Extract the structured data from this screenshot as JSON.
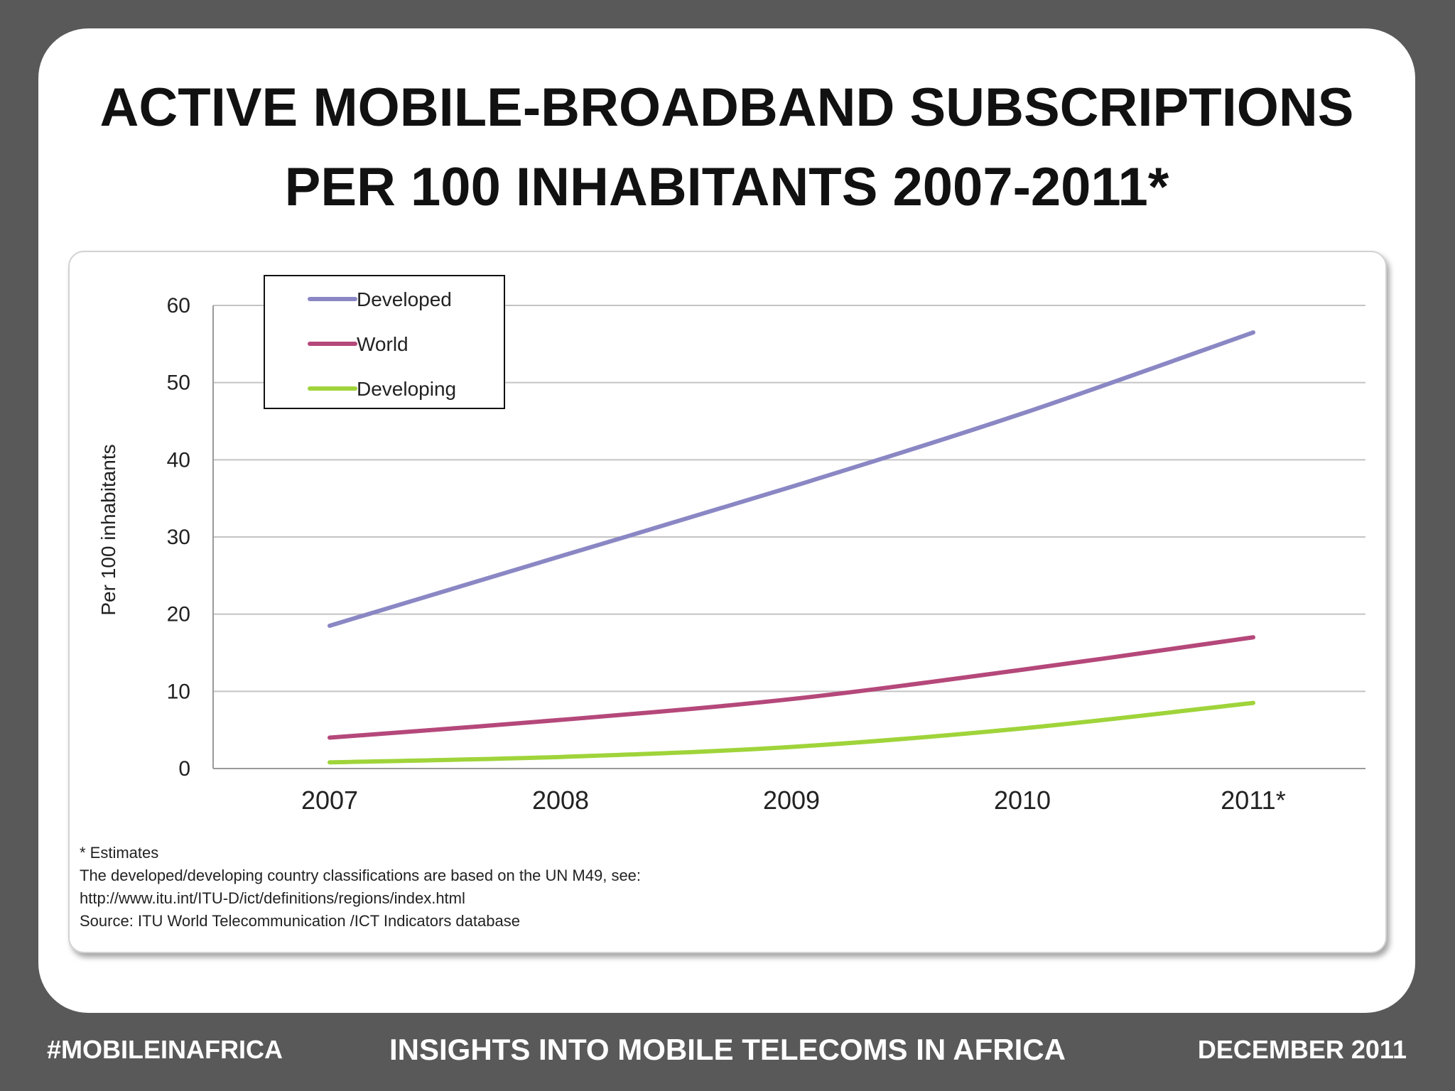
{
  "slide": {
    "title_line1": "ACTIVE MOBILE-BROADBAND SUBSCRIPTIONS",
    "title_line2": "PER 100 INHABITANTS 2007-2011*"
  },
  "chart_data": {
    "type": "line",
    "categories": [
      "2007",
      "2008",
      "2009",
      "2010",
      "2011*"
    ],
    "series": [
      {
        "name": "Developed",
        "color": "#8a87c4",
        "values": [
          18.5,
          27.5,
          36.5,
          46.0,
          56.5
        ]
      },
      {
        "name": "World",
        "color": "#b5487a",
        "values": [
          4.0,
          6.3,
          9.0,
          12.8,
          17.0
        ]
      },
      {
        "name": "Developing",
        "color": "#9fd43a",
        "values": [
          0.8,
          1.5,
          2.8,
          5.2,
          8.5
        ]
      }
    ],
    "ylabel": "Per 100 inhabitants",
    "xlabel": "",
    "ylim": [
      0,
      60
    ],
    "yticks": [
      0,
      10,
      20,
      30,
      40,
      50,
      60
    ],
    "grid": true,
    "legend_position": "top-left"
  },
  "notes": {
    "estimates": "* Estimates",
    "classification": "The developed/developing country classifications are based on the UN M49, see:",
    "url": "http://www.itu.int/ITU-D/ict/definitions/regions/index.html",
    "source": "Source:  ITU World Telecommunication /ICT Indicators database"
  },
  "footer": {
    "left": "#MOBILEINAFRICA",
    "center": "INSIGHTS INTO MOBILE TELECOMS IN AFRICA",
    "right": "DECEMBER 2011"
  }
}
